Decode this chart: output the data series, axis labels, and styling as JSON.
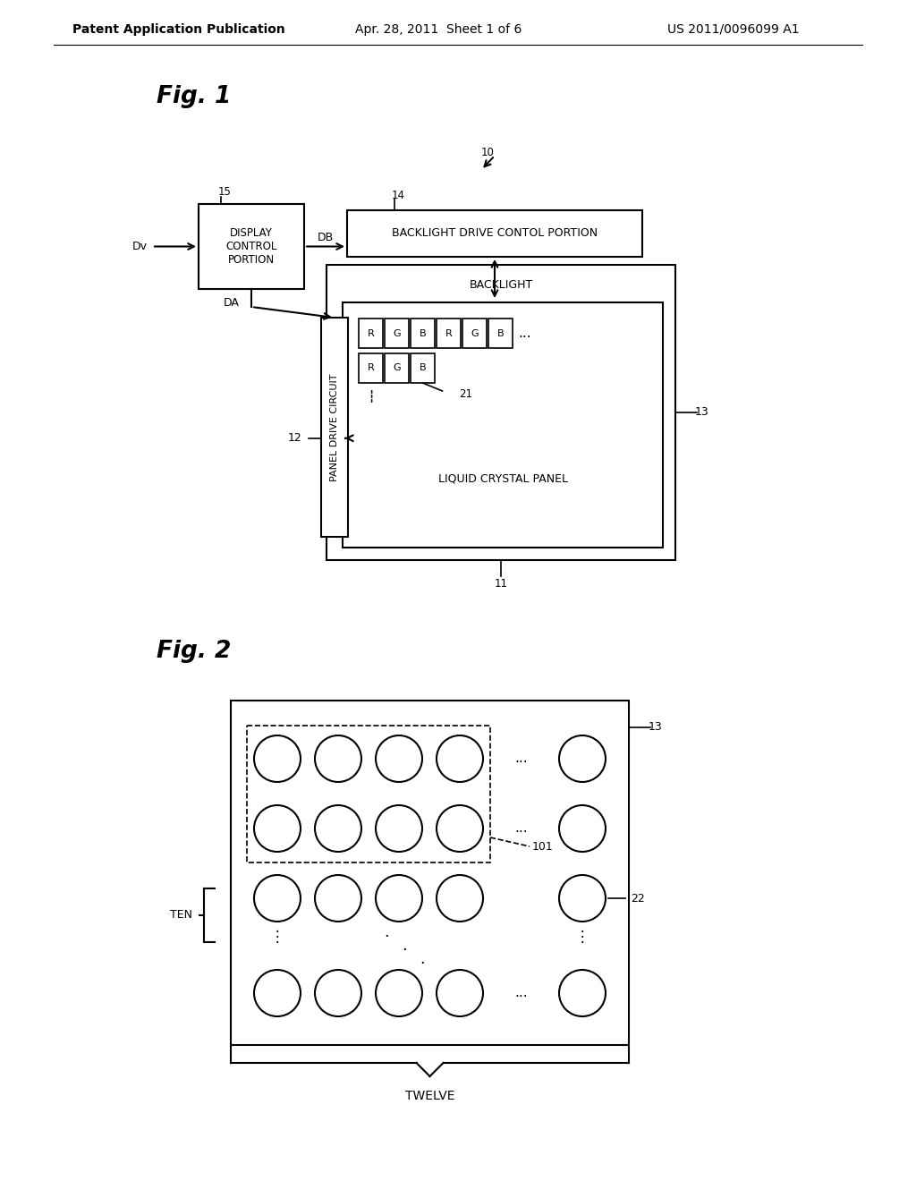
{
  "header_left": "Patent Application Publication",
  "header_mid": "Apr. 28, 2011  Sheet 1 of 6",
  "header_right": "US 2011/0096099 A1",
  "fig1_title": "Fig. 1",
  "fig2_title": "Fig. 2",
  "bg_color": "#ffffff",
  "label_10": "10",
  "label_11": "11",
  "label_12": "12",
  "label_13": "13",
  "label_14": "14",
  "label_15": "15",
  "label_21": "21",
  "label_22": "22",
  "label_101": "101",
  "label_Dv": "Dv",
  "label_DB": "DB",
  "label_DA": "DA",
  "label_TEN": "TEN",
  "label_TWELVE": "TWELVE",
  "box_display_control": "DISPLAY\nCONTROL\nPORTION",
  "box_backlight_drive": "BACKLIGHT DRIVE CONTOL PORTION",
  "box_backlight": "BACKLIGHT",
  "box_liquid_crystal": "LIQUID CRYSTAL PANEL",
  "box_panel_drive": "PANEL DRIVE CIRCUIT"
}
